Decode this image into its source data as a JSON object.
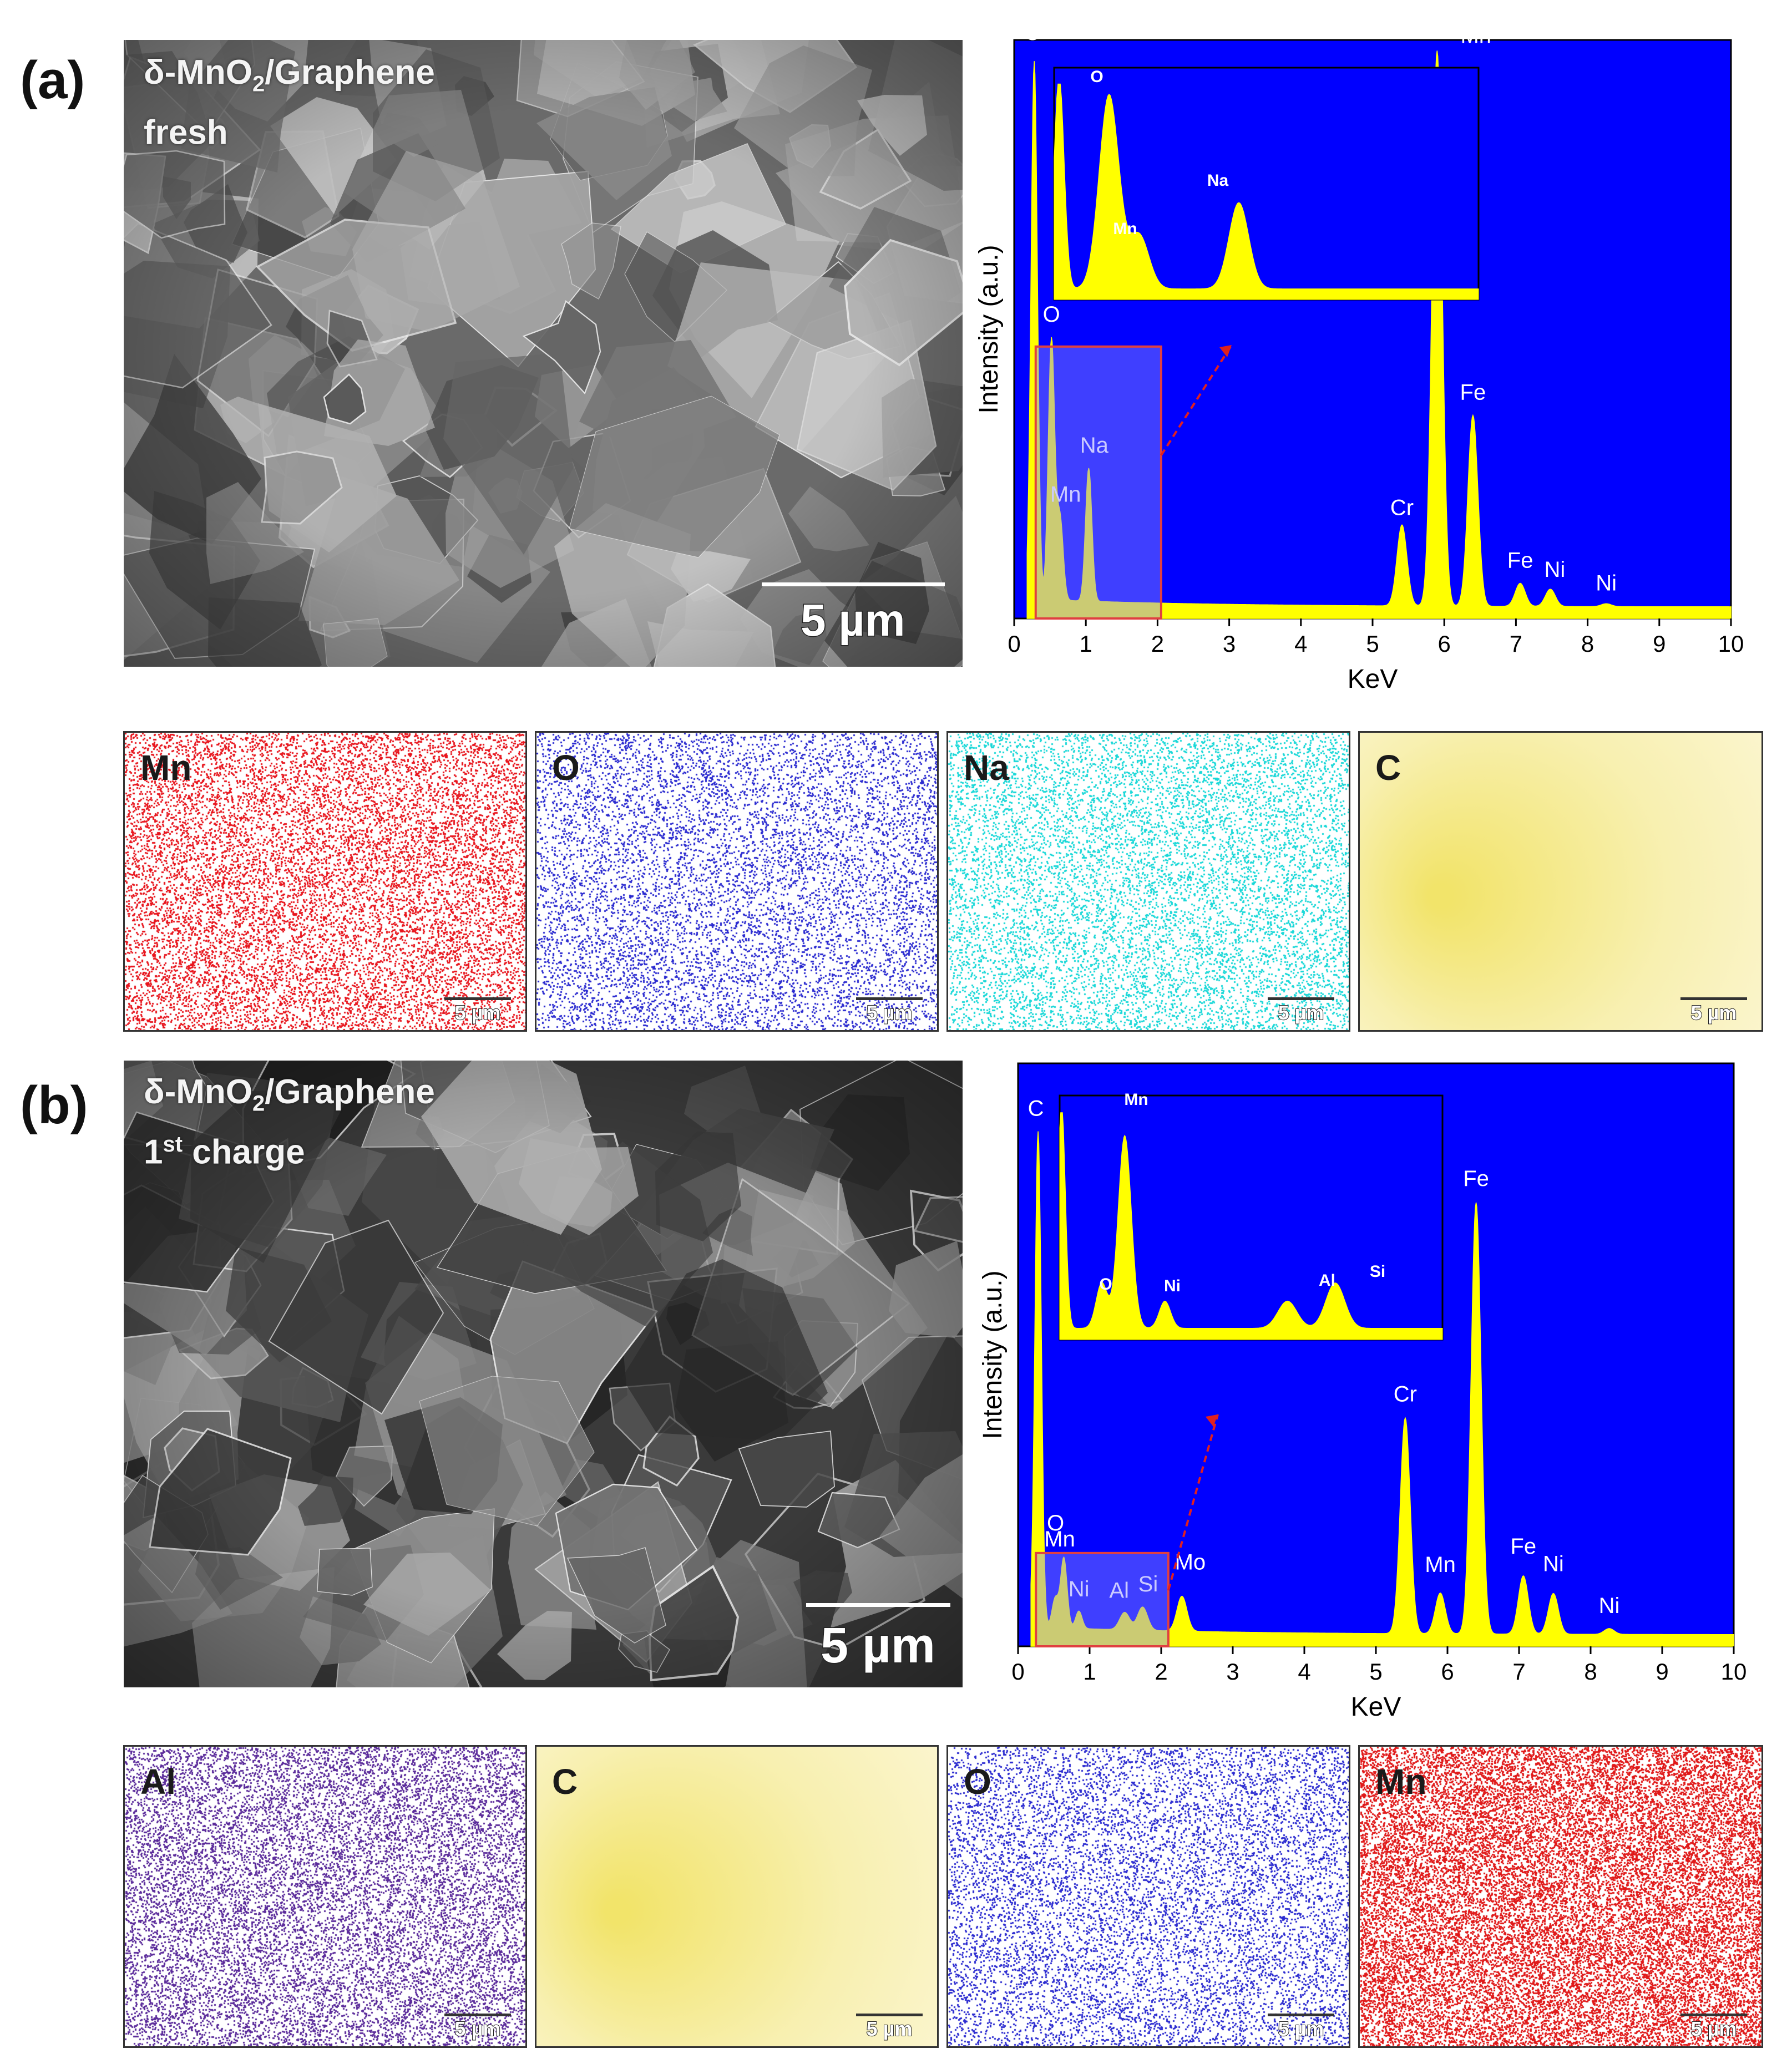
{
  "panels": [
    {
      "label": "(a)",
      "sem": {
        "caption_line1_pre": "δ-MnO",
        "caption_line1_sub": "2",
        "caption_line1_post": "/Graphene",
        "caption_line2_pre": "fresh",
        "caption_line2_sup": "",
        "caption_line2_post": "",
        "scale_label": "5 µm"
      },
      "eds": {
        "ylabel": "Intensity (a.u.)",
        "xlabel": "KeV",
        "xticks": [
          "0",
          "1",
          "2",
          "3",
          "4",
          "5",
          "6",
          "7",
          "8",
          "9",
          "10"
        ],
        "peak_labels": [
          "C",
          "O",
          "Mn",
          "Na",
          "Cr",
          "Mn",
          "Fe",
          "Fe",
          "Ni",
          "Ni"
        ],
        "inset_labels": [
          "O",
          "Mn",
          "Na"
        ]
      },
      "maps": [
        {
          "label": "Mn",
          "color": "#e8141c",
          "density": 0.3,
          "scale": "5 µm"
        },
        {
          "label": "O",
          "color": "#2a2ad0",
          "density": 0.2,
          "scale": "5 µm"
        },
        {
          "label": "Na",
          "color": "#18d8d8",
          "density": 0.22,
          "scale": "5 µm"
        },
        {
          "label": "C",
          "color": "#f5e25a",
          "density": 0.0,
          "scale": "5 µm"
        }
      ]
    },
    {
      "label": "(b)",
      "sem": {
        "caption_line1_pre": "δ-MnO",
        "caption_line1_sub": "2",
        "caption_line1_post": "/Graphene",
        "caption_line2_pre": "1",
        "caption_line2_sup": "st",
        "caption_line2_post": " charge",
        "scale_label": "5 µm"
      },
      "eds": {
        "ylabel": "Intensity (a.u.)",
        "xlabel": "KeV",
        "xticks": [
          "0",
          "1",
          "2",
          "3",
          "4",
          "5",
          "6",
          "7",
          "8",
          "9",
          "10"
        ],
        "peak_labels": [
          "C",
          "Mn",
          "O",
          "Ni",
          "Al",
          "Si",
          "Mo",
          "Cr",
          "Mn",
          "Fe",
          "Fe",
          "Ni",
          "Ni"
        ],
        "inset_labels": [
          "Mn",
          "O",
          "Ni",
          "Al",
          "Si"
        ]
      },
      "maps": [
        {
          "label": "Al",
          "color": "#5a2a9a",
          "density": 0.32,
          "scale": "5 µm"
        },
        {
          "label": "C",
          "color": "#f5e25a",
          "density": 0.0,
          "scale": "5 µm"
        },
        {
          "label": "O",
          "color": "#2a2ad0",
          "density": 0.22,
          "scale": "5 µm"
        },
        {
          "label": "Mn",
          "color": "#e01818",
          "density": 0.55,
          "scale": "5 µm"
        }
      ]
    }
  ],
  "chart_data": [
    {
      "type": "line",
      "xlabel": "KeV",
      "ylabel": "Intensity (a.u.)",
      "xlim": [
        0,
        10
      ],
      "background": "#0000ff",
      "fill": "#ffff00",
      "peaks_keV": [
        {
          "label": "C",
          "x": 0.28,
          "rel_height": 0.93
        },
        {
          "label": "O",
          "x": 0.52,
          "rel_height": 0.45
        },
        {
          "label": "Mn",
          "x": 0.64,
          "rel_height": 0.14
        },
        {
          "label": "Na",
          "x": 1.04,
          "rel_height": 0.23
        },
        {
          "label": "Cr",
          "x": 5.41,
          "rel_height": 0.14
        },
        {
          "label": "Mn",
          "x": 5.9,
          "rel_height": 0.96
        },
        {
          "label": "Fe",
          "x": 6.4,
          "rel_height": 0.33
        },
        {
          "label": "Fe",
          "x": 7.06,
          "rel_height": 0.04
        },
        {
          "label": "Ni",
          "x": 7.48,
          "rel_height": 0.03
        },
        {
          "label": "Ni",
          "x": 8.26,
          "rel_height": 0.005
        }
      ]
    },
    {
      "type": "line",
      "xlabel": "KeV",
      "ylabel": "Intensity (a.u.)",
      "xlim": [
        0,
        10
      ],
      "background": "#0000ff",
      "fill": "#ffff00",
      "peaks_keV": [
        {
          "label": "C",
          "x": 0.28,
          "rel_height": 0.85
        },
        {
          "label": "O",
          "x": 0.52,
          "rel_height": 0.05
        },
        {
          "label": "Mn",
          "x": 0.64,
          "rel_height": 0.12
        },
        {
          "label": "Ni",
          "x": 0.85,
          "rel_height": 0.03
        },
        {
          "label": "Al",
          "x": 1.49,
          "rel_height": 0.03
        },
        {
          "label": "Si",
          "x": 1.74,
          "rel_height": 0.04
        },
        {
          "label": "Mo",
          "x": 2.29,
          "rel_height": 0.06
        },
        {
          "label": "Cr",
          "x": 5.41,
          "rel_height": 0.37
        },
        {
          "label": "Mn",
          "x": 5.9,
          "rel_height": 0.07
        },
        {
          "label": "Fe",
          "x": 6.4,
          "rel_height": 0.74
        },
        {
          "label": "Fe",
          "x": 7.06,
          "rel_height": 0.1
        },
        {
          "label": "Ni",
          "x": 7.48,
          "rel_height": 0.07
        },
        {
          "label": "Ni",
          "x": 8.26,
          "rel_height": 0.01
        }
      ]
    }
  ]
}
